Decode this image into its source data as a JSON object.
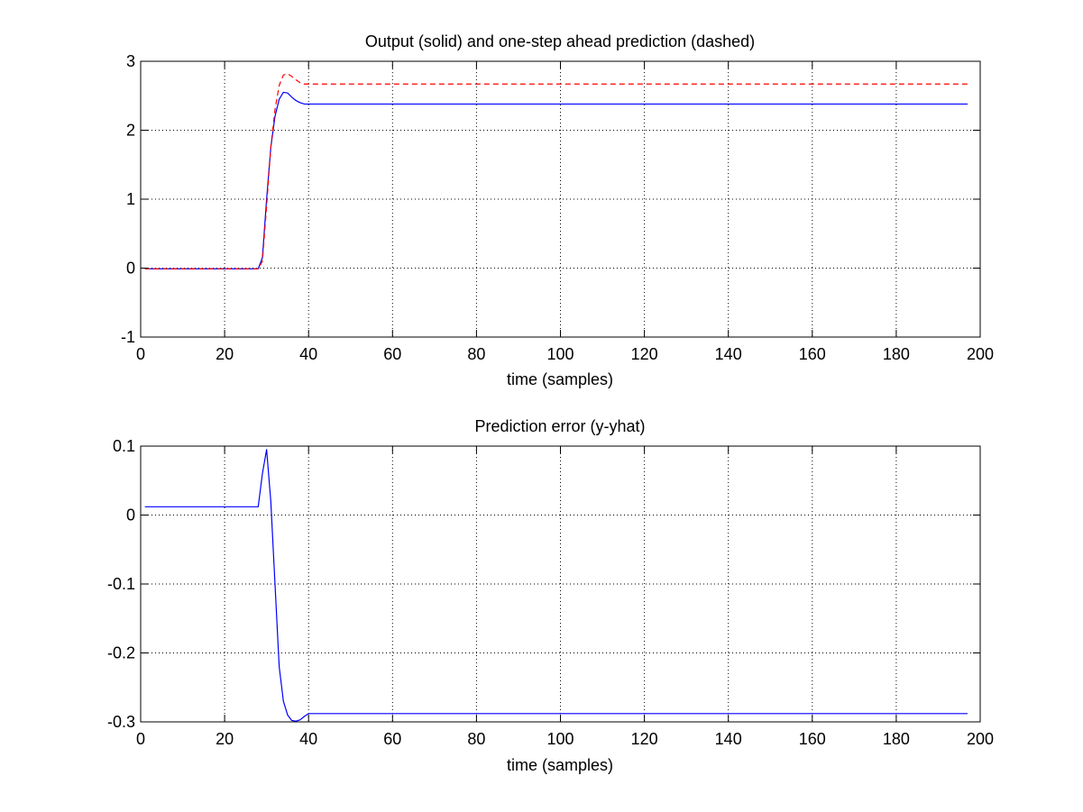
{
  "figure": {
    "background": "#ffffff"
  },
  "chart_data": [
    {
      "type": "line",
      "title": "Output (solid) and one-step ahead prediction (dashed)",
      "xlabel": "time (samples)",
      "ylabel": "",
      "xlim": [
        0,
        200
      ],
      "ylim": [
        -1,
        3
      ],
      "xticks": [
        0,
        20,
        40,
        60,
        80,
        100,
        120,
        140,
        160,
        180,
        200
      ],
      "xtick_labels": [
        "0",
        "20",
        "40",
        "60",
        "80",
        "100",
        "120",
        "140",
        "160",
        "180",
        "200"
      ],
      "yticks": [
        -1,
        0,
        1,
        2,
        3
      ],
      "ytick_labels": [
        "-1",
        "0",
        "1",
        "2",
        "3"
      ],
      "grid": true,
      "series": [
        {
          "style": "solid",
          "color": "#0000ff",
          "x": [
            1,
            28,
            29,
            30,
            31,
            32,
            33,
            34,
            35,
            36,
            37,
            38,
            39,
            40,
            41,
            197
          ],
          "y": [
            -0.01,
            -0.01,
            0.15,
            1.0,
            1.75,
            2.2,
            2.45,
            2.55,
            2.54,
            2.48,
            2.43,
            2.4,
            2.38,
            2.38,
            2.38,
            2.38
          ]
        },
        {
          "style": "dashed",
          "color": "#ff0000",
          "x": [
            1,
            28,
            29,
            30,
            31,
            32,
            33,
            34,
            35,
            36,
            37,
            38,
            39,
            40,
            41,
            197
          ],
          "y": [
            -0.01,
            -0.01,
            0.1,
            0.9,
            1.75,
            2.3,
            2.65,
            2.8,
            2.82,
            2.78,
            2.73,
            2.69,
            2.67,
            2.67,
            2.67,
            2.67
          ]
        }
      ]
    },
    {
      "type": "line",
      "title": "Prediction error (y-yhat)",
      "xlabel": "time (samples)",
      "ylabel": "",
      "xlim": [
        0,
        200
      ],
      "ylim": [
        -0.3,
        0.1
      ],
      "xticks": [
        0,
        20,
        40,
        60,
        80,
        100,
        120,
        140,
        160,
        180,
        200
      ],
      "xtick_labels": [
        "0",
        "20",
        "40",
        "60",
        "80",
        "100",
        "120",
        "140",
        "160",
        "180",
        "200"
      ],
      "yticks": [
        -0.3,
        -0.2,
        -0.1,
        0,
        0.1
      ],
      "ytick_labels": [
        "-0.3",
        "-0.2",
        "-0.1",
        "0",
        "0.1"
      ],
      "grid": true,
      "series": [
        {
          "style": "solid",
          "color": "#0000ff",
          "x": [
            1,
            28,
            29,
            30,
            31,
            32,
            33,
            34,
            35,
            36,
            37,
            38,
            39,
            40,
            41,
            197
          ],
          "y": [
            0.012,
            0.012,
            0.06,
            0.095,
            0.02,
            -0.1,
            -0.22,
            -0.27,
            -0.29,
            -0.298,
            -0.299,
            -0.297,
            -0.292,
            -0.288,
            -0.288,
            -0.288
          ]
        }
      ]
    }
  ]
}
